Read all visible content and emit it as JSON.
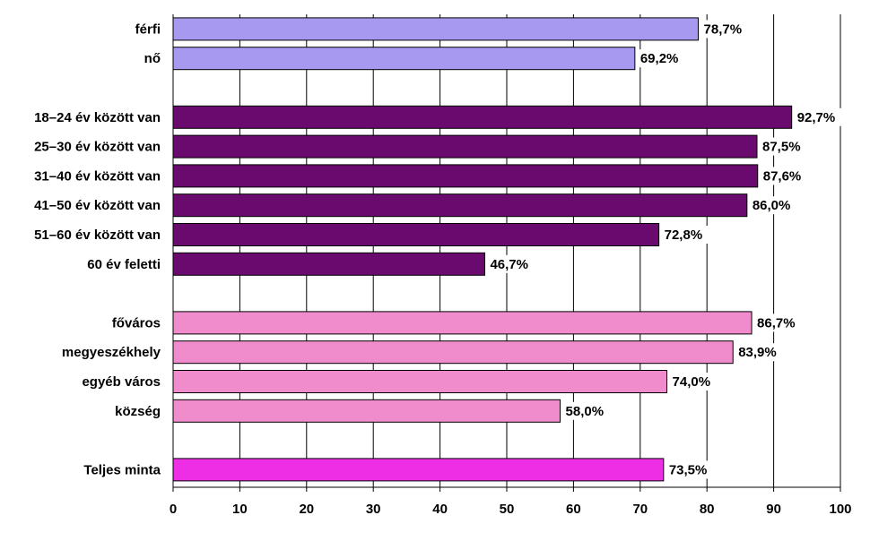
{
  "chart_data": {
    "type": "bar",
    "orientation": "horizontal",
    "title": "",
    "xlabel": "",
    "ylabel": "",
    "xlim": [
      0,
      100
    ],
    "x_ticks": [
      0,
      10,
      20,
      30,
      40,
      50,
      60,
      70,
      80,
      90,
      100
    ],
    "grid": true,
    "legend": "none",
    "groups": [
      {
        "color": "#a899f0",
        "items": [
          {
            "category": "férfi",
            "value": 78.7,
            "label": "78,7%"
          },
          {
            "category": "nő",
            "value": 69.2,
            "label": "69,2%"
          }
        ]
      },
      {
        "color": "#6a0a6e",
        "items": [
          {
            "category": "18–24 év között van",
            "value": 92.7,
            "label": "92,7%"
          },
          {
            "category": "25–30 év között van",
            "value": 87.5,
            "label": "87,5%"
          },
          {
            "category": "31–40 év között van",
            "value": 87.6,
            "label": "87,6%"
          },
          {
            "category": "41–50 év között van",
            "value": 86.0,
            "label": "86,0%"
          },
          {
            "category": "51–60 év között van",
            "value": 72.8,
            "label": "72,8%"
          },
          {
            "category": "60 év feletti",
            "value": 46.7,
            "label": "46,7%"
          }
        ]
      },
      {
        "color": "#f08ccc",
        "items": [
          {
            "category": "főváros",
            "value": 86.7,
            "label": "86,7%"
          },
          {
            "category": "megyeszékhely",
            "value": 83.9,
            "label": "83,9%"
          },
          {
            "category": "egyéb város",
            "value": 74.0,
            "label": "74,0%"
          },
          {
            "category": "község",
            "value": 58.0,
            "label": "58,0%"
          }
        ]
      },
      {
        "color": "#ee2ee4",
        "items": [
          {
            "category": "Teljes minta",
            "value": 73.5,
            "label": "73,5%"
          }
        ]
      }
    ]
  }
}
